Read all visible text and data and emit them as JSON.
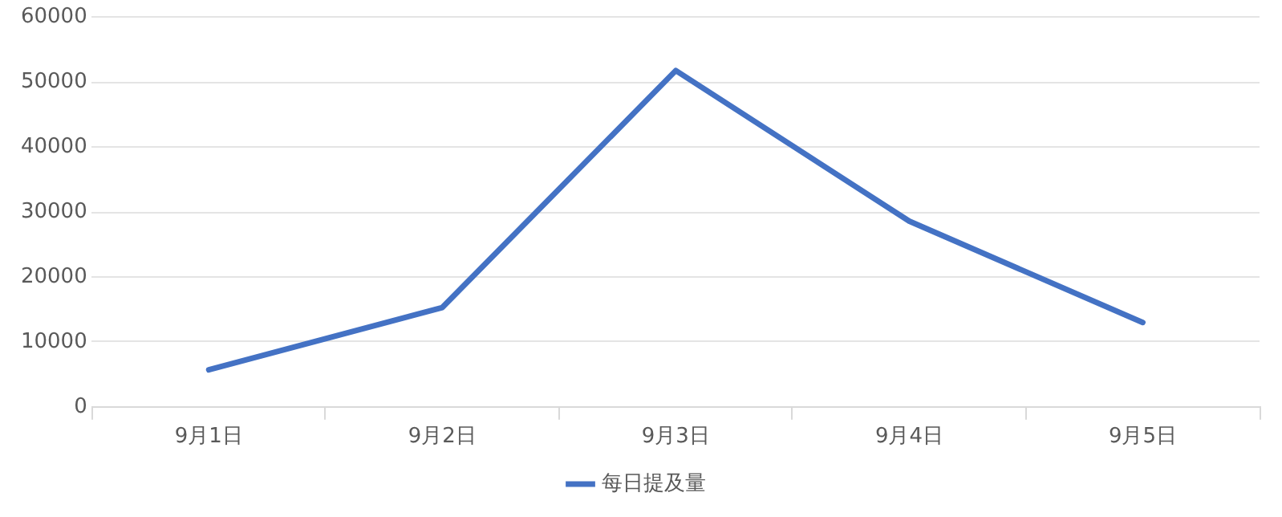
{
  "chart_data": {
    "type": "line",
    "categories": [
      "9月1日",
      "9月2日",
      "9月3日",
      "9月4日",
      "9月5日"
    ],
    "series": [
      {
        "name": "每日提及量",
        "color": "#4472c4",
        "values": [
          5700,
          15300,
          51800,
          28600,
          13000
        ]
      }
    ],
    "ylim": [
      0,
      60000
    ],
    "yticks": [
      0,
      10000,
      20000,
      30000,
      40000,
      50000,
      60000
    ],
    "grid": "y",
    "legend": "bottom",
    "marker": "none",
    "line_style": "solid"
  }
}
